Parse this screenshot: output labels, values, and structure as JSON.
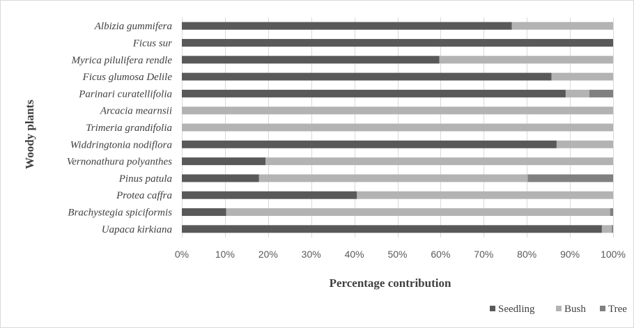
{
  "chart_data": {
    "type": "bar",
    "orientation": "horizontal",
    "stacked": "percent",
    "xlabel": "Percentage contribution",
    "ylabel": "Woody plants",
    "xlim": [
      0,
      100
    ],
    "x_ticks": [
      "0%",
      "10%",
      "20%",
      "30%",
      "40%",
      "50%",
      "60%",
      "70%",
      "80%",
      "90%",
      "100%"
    ],
    "grid": "vertical",
    "legend_position": "bottom-right",
    "categories": [
      "Albizia gummifera",
      "Ficus sur",
      "Myrica pilulifera rendle",
      "Ficus glumosa Delile",
      "Parinari curatellifolia",
      "Arcacia mearnsii",
      "Trimeria grandifolia",
      "Widdringtonia nodiflora",
      "Vernonathura polyanthes",
      "Pinus patula",
      "Protea caffra",
      "Brachystegia spiciformis",
      "Uapaca kirkiana"
    ],
    "series": [
      {
        "name": "Seedling",
        "color": "#595959",
        "values": [
          76.5,
          100,
          59.7,
          85.7,
          89.0,
          0,
          0,
          86.9,
          19.4,
          17.9,
          40.6,
          10.3,
          97.4
        ]
      },
      {
        "name": "Bush",
        "color": "#b3b3b3",
        "values": [
          23.5,
          0,
          40.3,
          14.3,
          5.5,
          100,
          100,
          13.1,
          80.6,
          62.3,
          59.4,
          89.0,
          2.3
        ]
      },
      {
        "name": "Tree",
        "color": "#808080",
        "values": [
          0,
          0,
          0,
          0,
          5.5,
          0,
          0,
          0,
          0,
          19.8,
          0,
          0.7,
          0.3
        ]
      }
    ]
  }
}
